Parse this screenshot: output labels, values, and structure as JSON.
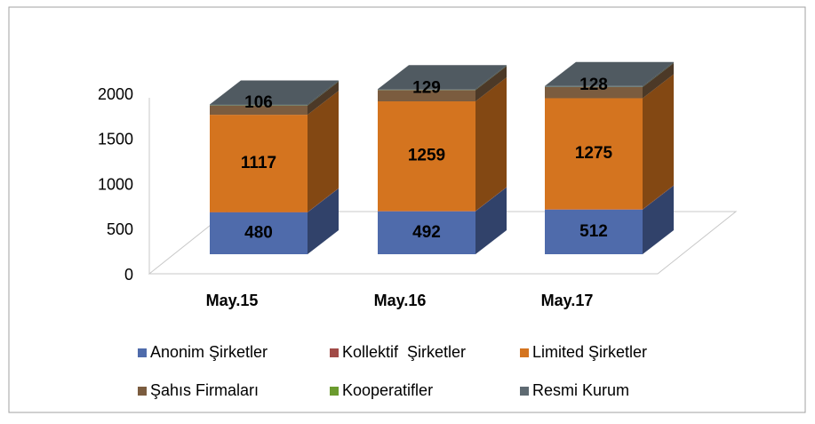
{
  "chart_data": {
    "type": "bar3d_stacked",
    "categories": [
      "May.15",
      "May.16",
      "May.17"
    ],
    "series": [
      {
        "name": "Anonim Şirketler",
        "color": "#4f6bab",
        "values": [
          480,
          492,
          512
        ]
      },
      {
        "name": "Kollektif  Şirketler",
        "color": "#a14b47",
        "values": [
          4,
          4,
          4
        ]
      },
      {
        "name": "Limited Şirketler",
        "color": "#d4741f",
        "values": [
          1117,
          1259,
          1275
        ]
      },
      {
        "name": "Şahıs Firmaları",
        "color": "#7b5c3f",
        "values": [
          106,
          129,
          128
        ]
      },
      {
        "name": "Kooperatifler",
        "color": "#6b9b2f",
        "values": [
          2,
          2,
          2
        ]
      },
      {
        "name": "Resmi Kurum",
        "color": "#5e6a72",
        "values": [
          10,
          10,
          10
        ]
      }
    ],
    "ylim": [
      0,
      2000
    ],
    "yticks": [
      0,
      500,
      1000,
      1500,
      2000
    ]
  }
}
